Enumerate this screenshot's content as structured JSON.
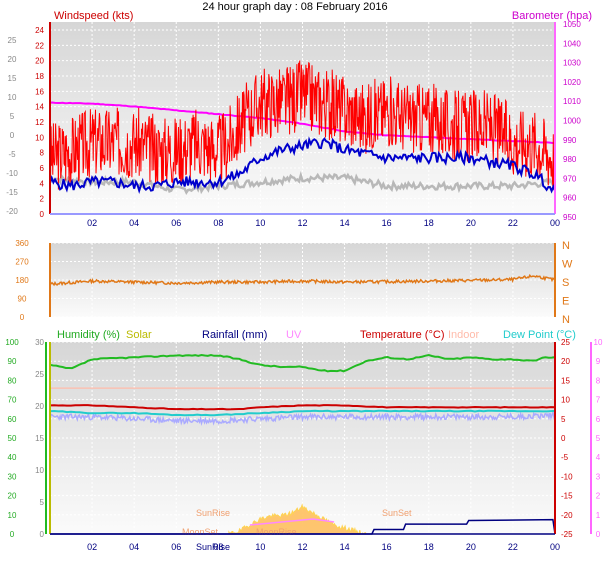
{
  "title": "24 hour graph day : 08 February 2016",
  "colors": {
    "wind": "#ff0000",
    "gust_avg": "#0000cc",
    "baro": "#ff00ff",
    "grey_line": "#b8b8b8",
    "wind_dir": "#e07818",
    "humidity": "#22bb22",
    "solar": "#c8c800",
    "rainfall": "#000080",
    "uv": "#ff88ff",
    "temperature": "#cc0000",
    "indoor": "#ffbbaa",
    "dewpoint": "#22cccc",
    "lavender": "#aaaaff",
    "sun_area": "#ffc060"
  },
  "chart_data": [
    {
      "type": "line",
      "panel": "wind",
      "left_label": "Windspeed (kts)",
      "right_label": "Barometer (hpa)",
      "x_ticks": [
        "02",
        "04",
        "06",
        "08",
        "10",
        "12",
        "14",
        "16",
        "18",
        "20",
        "22",
        "00"
      ],
      "outer_left_ticks": [
        "25",
        "20",
        "15",
        "10",
        "5",
        "0",
        "-5",
        "-10",
        "-15",
        "-20"
      ],
      "left_ticks": [
        "24",
        "22",
        "20",
        "18",
        "16",
        "14",
        "12",
        "10",
        "8",
        "6",
        "4",
        "2",
        "0"
      ],
      "left_ylim": [
        0,
        24
      ],
      "right_ticks": [
        "1050",
        "1040",
        "1030",
        "1020",
        "1010",
        "1000",
        "990",
        "980",
        "970",
        "960",
        "950"
      ],
      "right_ylim": [
        950,
        1050
      ],
      "series": [
        {
          "key": "windspeed",
          "hours": [
            0,
            1,
            2,
            3,
            4,
            5,
            6,
            7,
            8,
            8.5,
            9,
            10,
            11,
            12,
            13,
            14,
            15,
            16,
            17,
            18,
            19,
            20,
            21,
            22,
            23,
            23.5,
            24
          ],
          "values": [
            7,
            8,
            9,
            9,
            9,
            8,
            8,
            9,
            8,
            9,
            11,
            14,
            14,
            15,
            14,
            13,
            12,
            13,
            12,
            12,
            11,
            11,
            11,
            9,
            9,
            8,
            7
          ]
        },
        {
          "key": "avg_blue",
          "hours": [
            0,
            1,
            2,
            3,
            4,
            5,
            6,
            7,
            8,
            9,
            10,
            11,
            12,
            13,
            14,
            15,
            16,
            17,
            18,
            19,
            20,
            21,
            22,
            23,
            23.5,
            24
          ],
          "values": [
            4,
            3.5,
            4,
            4,
            3.5,
            3.5,
            4,
            4,
            4,
            5,
            7,
            8,
            8.5,
            9,
            8,
            7.5,
            7,
            7,
            7,
            7,
            7,
            6.5,
            6,
            5,
            4,
            2.5
          ]
        },
        {
          "key": "barometer",
          "hours": [
            0,
            2,
            4,
            6,
            8,
            10,
            12,
            14,
            16,
            18,
            20,
            22,
            24
          ],
          "values": [
            1008,
            1007.5,
            1006,
            1004,
            1002,
            1000,
            997,
            993,
            991,
            990,
            989,
            988,
            987
          ]
        },
        {
          "key": "grey",
          "hours": [
            0,
            2,
            4,
            6,
            8,
            10,
            12,
            14,
            16,
            18,
            20,
            22,
            24
          ],
          "values": [
            4.5,
            4,
            4,
            3,
            3.5,
            4,
            4.5,
            4.5,
            3.5,
            3.5,
            3.5,
            3.5,
            4
          ]
        }
      ]
    },
    {
      "type": "line",
      "panel": "wind_direction",
      "left_ticks": [
        "360",
        "270",
        "180",
        "90",
        "0"
      ],
      "ylim": [
        0,
        360
      ],
      "compass": [
        "N",
        "W",
        "S",
        "E",
        "N"
      ],
      "series": [
        {
          "key": "direction",
          "hours": [
            0,
            2,
            4,
            6,
            8,
            10,
            12,
            14,
            16,
            18,
            20,
            22,
            23,
            24
          ],
          "values": [
            160,
            175,
            170,
            165,
            170,
            170,
            175,
            170,
            172,
            175,
            178,
            182,
            200,
            180
          ]
        }
      ]
    },
    {
      "type": "line",
      "panel": "weather",
      "legend": [
        "Humidity (%)",
        "Solar",
        "Rainfall (mm)",
        "UV",
        "Temperature (°C)",
        "Indoor",
        "Dew Point (°C)"
      ],
      "humidity_ticks": [
        "100",
        "90",
        "80",
        "70",
        "60",
        "50",
        "40",
        "30",
        "20",
        "10",
        "0"
      ],
      "inner_left_ticks": [
        "30",
        "25",
        "20",
        "15",
        "10",
        "5",
        "0"
      ],
      "temp_ticks": [
        "25",
        "20",
        "15",
        "10",
        "5",
        "0",
        "-5",
        "-10",
        "-15",
        "-20",
        "-25"
      ],
      "uv_ticks": [
        "10",
        "9",
        "8",
        "7",
        "6",
        "5",
        "4",
        "3",
        "2",
        "1",
        "0"
      ],
      "humidity_ylim": [
        0,
        100
      ],
      "temp_ylim": [
        -25,
        25
      ],
      "annotations": [
        "SunRise",
        "SunSet",
        "MoonSet",
        "MoonRise",
        "SunRise"
      ],
      "series": [
        {
          "key": "humidity",
          "hours": [
            0,
            1,
            2,
            4,
            6,
            8,
            9,
            10,
            11,
            12,
            13,
            14,
            15,
            16,
            17,
            18,
            19,
            20,
            21,
            22,
            23,
            23.5,
            24
          ],
          "values": [
            88,
            86,
            91,
            92,
            93,
            93,
            91,
            88,
            87,
            87,
            85,
            85,
            90,
            92,
            91,
            93,
            91,
            92,
            91,
            91,
            90,
            92,
            92
          ]
        },
        {
          "key": "temperature",
          "hours": [
            0,
            2,
            4,
            6,
            8,
            9,
            10,
            12,
            14,
            16,
            18,
            20,
            22,
            24
          ],
          "values": [
            8.5,
            8.5,
            8,
            7.5,
            7.5,
            7.5,
            8,
            8.5,
            8.5,
            8,
            8,
            8,
            8,
            8
          ]
        },
        {
          "key": "dewpoint",
          "hours": [
            0,
            2,
            4,
            6,
            8,
            10,
            12,
            14,
            16,
            18,
            20,
            22,
            24
          ],
          "values": [
            7,
            6.5,
            6.5,
            6,
            6,
            6.5,
            7,
            7,
            7,
            7,
            7,
            7,
            7
          ]
        },
        {
          "key": "lavender",
          "hours": [
            0,
            2,
            4,
            6,
            8,
            10,
            12,
            14,
            16,
            18,
            20,
            22,
            24
          ],
          "values": [
            5.5,
            5.5,
            5,
            4.5,
            4.5,
            5,
            5.5,
            5.5,
            5.5,
            5.5,
            5.5,
            5.5,
            6
          ]
        },
        {
          "key": "indoor",
          "hours": [
            0,
            24
          ],
          "values": [
            13,
            13
          ]
        },
        {
          "key": "rainfall",
          "hours": [
            0,
            15.3,
            15.4,
            16.8,
            16.9,
            19.8,
            19.9,
            23.9,
            24
          ],
          "values": [
            0,
            0,
            0.5,
            0.5,
            1.1,
            1.1,
            1.5,
            1.6,
            0
          ]
        },
        {
          "key": "solar",
          "hours": [
            8.5,
            9,
            9.5,
            10,
            10.5,
            11,
            11.5,
            12,
            12.5,
            13,
            13.5,
            14,
            14.5,
            15
          ],
          "values": [
            0,
            1,
            3,
            5,
            6,
            6,
            7,
            9,
            7,
            5,
            3,
            2,
            1,
            0
          ]
        }
      ]
    }
  ]
}
